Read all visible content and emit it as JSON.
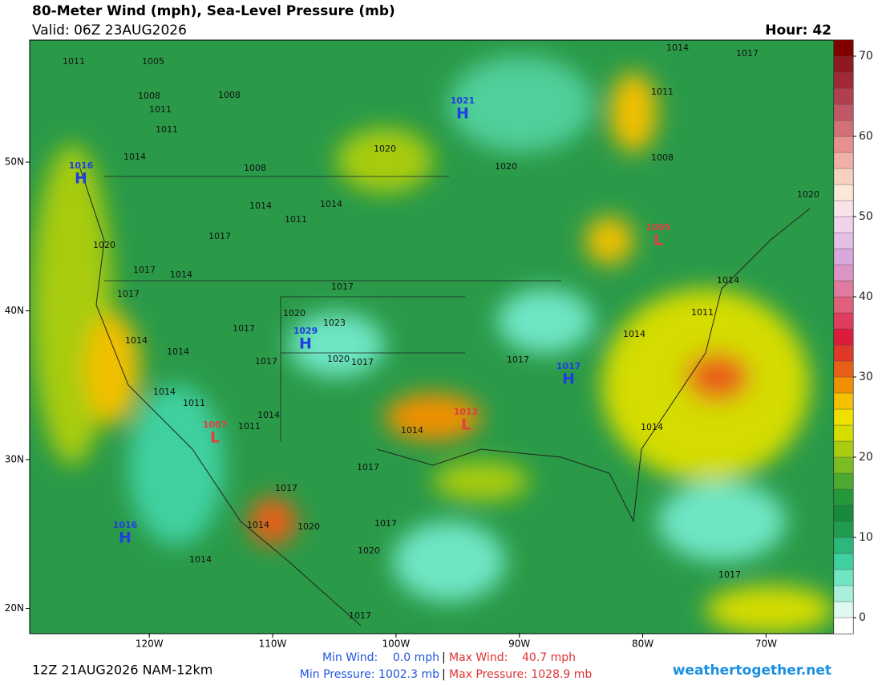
{
  "header": {
    "title": "80-Meter Wind (mph), Sea-Level Pressure (mb)",
    "valid": "Valid: 06Z 23AUG2026",
    "hour": "Hour: 42"
  },
  "map": {
    "lon_lim": [
      -129.7,
      -64.5
    ],
    "lat_lim": [
      18.3,
      58.2
    ],
    "lon_ticks": [
      {
        "value": -120,
        "label": "120W"
      },
      {
        "value": -110,
        "label": "110W"
      },
      {
        "value": -100,
        "label": "100W"
      },
      {
        "value": -90,
        "label": "90W"
      },
      {
        "value": -80,
        "label": "80W"
      },
      {
        "value": -70,
        "label": "70W"
      }
    ],
    "lat_ticks": [
      {
        "value": 50,
        "label": "50N"
      },
      {
        "value": 40,
        "label": "40N"
      },
      {
        "value": 30,
        "label": "30N"
      },
      {
        "value": 20,
        "label": "20N"
      }
    ],
    "isobar_labels": [
      "1011",
      "1005",
      "1008",
      "1011",
      "1011",
      "1008",
      "1014",
      "1008",
      "1020",
      "1020",
      "1014",
      "1017",
      "1011",
      "1008",
      "1020",
      "1014",
      "1011",
      "1014",
      "1017",
      "1020",
      "1017",
      "1014",
      "1017",
      "1017",
      "1020",
      "1023",
      "1017",
      "1014",
      "1014",
      "1017",
      "1020",
      "1017",
      "1017",
      "1014",
      "1011",
      "1014",
      "1014",
      "1011",
      "1011",
      "1014",
      "1014",
      "1014",
      "1017",
      "1017",
      "1014",
      "1020",
      "1017",
      "1020",
      "1014",
      "1017",
      "1017"
    ],
    "centers": [
      {
        "symbol": "H",
        "pressure": "1021"
      },
      {
        "symbol": "H",
        "pressure": "1016"
      },
      {
        "symbol": "H",
        "pressure": "1029"
      },
      {
        "symbol": "H",
        "pressure": "1017"
      },
      {
        "symbol": "H",
        "pressure": "1016"
      },
      {
        "symbol": "L",
        "pressure": "1005"
      },
      {
        "symbol": "L",
        "pressure": "1013"
      },
      {
        "symbol": "L",
        "pressure": "1007"
      }
    ]
  },
  "colorbar": {
    "lim": [
      -2,
      72
    ],
    "ticks": [
      0,
      10,
      20,
      30,
      40,
      50,
      60,
      70
    ],
    "colors": [
      "#ffffff",
      "#dff8f0",
      "#a8f0dc",
      "#6ee6c4",
      "#3fd0a0",
      "#2bb87a",
      "#1f9c4e",
      "#178a3c",
      "#23993a",
      "#4caa30",
      "#7bbd20",
      "#a8cc10",
      "#d4dc00",
      "#f0e000",
      "#f4c000",
      "#f09000",
      "#e86018",
      "#e03828",
      "#dc1c3c",
      "#e03c60",
      "#e0607c",
      "#e07aa0",
      "#dc94c4",
      "#d8a8dc",
      "#e4c0e4",
      "#f0d4ec",
      "#f8e4e8",
      "#fce8d8",
      "#f8d0c0",
      "#f0b0a8",
      "#e89090",
      "#d07078",
      "#c05868",
      "#b04050",
      "#a02838",
      "#901820",
      "#800000"
    ]
  },
  "footer": {
    "run": "12Z 21AUG2026 NAM-12km",
    "min_wind_label": "Min Wind:",
    "min_wind": "0.0 mph",
    "max_wind_label": "Max Wind:",
    "max_wind": "40.7 mph",
    "min_pressure": "Min Pressure: 1002.3 mb",
    "max_pressure": "Max Pressure: 1028.9 mb",
    "site": "weathertogether.net"
  }
}
